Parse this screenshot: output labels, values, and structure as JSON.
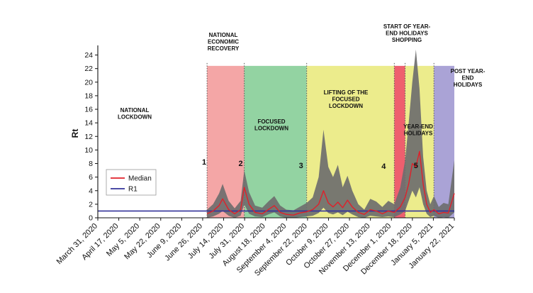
{
  "chart_data": {
    "type": "area",
    "title": "",
    "ylabel": "Rt",
    "xlabel": "",
    "ylim": [
      0,
      25
    ],
    "yticks": [
      0,
      2,
      4,
      6,
      8,
      10,
      12,
      14,
      16,
      18,
      20,
      22,
      24
    ],
    "x_tick_labels": [
      "March 31, 2020",
      "April 17, 2020",
      "May 5, 2020",
      "May 22, 2020",
      "June 9, 2020",
      "June 26, 2020",
      "July 14, 2020",
      "July 31, 2020",
      "August 18, 2020",
      "September 4, 2020",
      "September 22, 2020",
      "October 9, 2020",
      "October 27, 2020",
      "November 13, 2020",
      "December 1, 2020",
      "December 18, 2020",
      "January 5, 2021",
      "January 22, 2021"
    ],
    "x_range": [
      "2020-03-31",
      "2021-01-22"
    ],
    "phases": [
      {
        "label": "NATIONAL LOCKDOWN",
        "start": "2020-03-31",
        "end": "2020-06-30",
        "color": "#ffffff"
      },
      {
        "label": "NATIONAL ECONOMIC RECOVERY",
        "start": "2020-06-30",
        "end": "2020-07-31",
        "color": "#f4a6a6"
      },
      {
        "label": "FOCUSED LOCKDOWN",
        "start": "2020-07-31",
        "end": "2020-09-21",
        "color": "#93d3a2"
      },
      {
        "label": "LIFTING OF THE FOCUSED LOCKDOWN",
        "start": "2020-09-21",
        "end": "2020-12-03",
        "color": "#ecec8c"
      },
      {
        "label": "START OF YEAR-END HOLIDAYS SHOPPING",
        "start": "2020-12-03",
        "end": "2020-12-12",
        "color": "#ee5f6e"
      },
      {
        "label": "YEAR-END HOLIDAYS",
        "start": "2020-12-12",
        "end": "2021-01-05",
        "color": "#ecec8c"
      },
      {
        "label": "POST YEAR-END HOLIDAYS",
        "start": "2021-01-05",
        "end": "2021-01-22",
        "color": "#aaa3d6"
      }
    ],
    "phase_top": 22.4,
    "event_markers": [
      {
        "label": "1",
        "date": "2020-06-30"
      },
      {
        "label": "2",
        "date": "2020-07-31"
      },
      {
        "label": "3",
        "date": "2020-09-21"
      },
      {
        "label": "4",
        "date": "2020-12-03"
      },
      {
        "label": "5",
        "date": "2020-12-21"
      }
    ],
    "series": [
      {
        "name": "Median",
        "color": "#e0202a",
        "x": [
          "2020-06-30",
          "2020-07-05",
          "2020-07-10",
          "2020-07-13",
          "2020-07-18",
          "2020-07-23",
          "2020-07-28",
          "2020-07-31",
          "2020-08-04",
          "2020-08-09",
          "2020-08-15",
          "2020-08-20",
          "2020-08-25",
          "2020-08-30",
          "2020-09-04",
          "2020-09-10",
          "2020-09-15",
          "2020-09-21",
          "2020-09-26",
          "2020-10-01",
          "2020-10-05",
          "2020-10-09",
          "2020-10-13",
          "2020-10-17",
          "2020-10-21",
          "2020-10-25",
          "2020-10-29",
          "2020-11-03",
          "2020-11-08",
          "2020-11-13",
          "2020-11-18",
          "2020-11-23",
          "2020-11-28",
          "2020-12-03",
          "2020-12-08",
          "2020-12-12",
          "2020-12-15",
          "2020-12-18",
          "2020-12-21",
          "2020-12-24",
          "2020-12-27",
          "2020-12-30",
          "2021-01-02",
          "2021-01-05",
          "2021-01-09",
          "2021-01-13",
          "2021-01-17",
          "2021-01-22"
        ],
        "values": [
          0.6,
          1.0,
          1.8,
          2.8,
          1.2,
          0.6,
          1.2,
          4.5,
          2.0,
          0.8,
          0.6,
          1.2,
          1.8,
          0.8,
          0.5,
          0.4,
          0.7,
          0.9,
          1.2,
          2.0,
          4.0,
          2.2,
          1.6,
          2.3,
          1.5,
          2.6,
          1.6,
          0.8,
          0.5,
          1.2,
          1.0,
          0.6,
          1.0,
          0.8,
          1.6,
          3.0,
          5.0,
          8.0,
          7.5,
          9.8,
          5.0,
          2.0,
          0.8,
          1.2,
          0.6,
          0.8,
          0.7,
          3.6
        ]
      },
      {
        "name": "R1",
        "color": "#33339a",
        "x": [
          "2020-03-31",
          "2021-01-22"
        ],
        "values": [
          1,
          1
        ]
      }
    ],
    "credible_interval": {
      "color": "#6e6e6e",
      "x": [
        "2020-06-30",
        "2020-07-05",
        "2020-07-10",
        "2020-07-13",
        "2020-07-18",
        "2020-07-23",
        "2020-07-28",
        "2020-07-31",
        "2020-08-04",
        "2020-08-09",
        "2020-08-15",
        "2020-08-20",
        "2020-08-25",
        "2020-08-30",
        "2020-09-04",
        "2020-09-10",
        "2020-09-15",
        "2020-09-21",
        "2020-09-26",
        "2020-10-01",
        "2020-10-05",
        "2020-10-09",
        "2020-10-13",
        "2020-10-17",
        "2020-10-21",
        "2020-10-25",
        "2020-10-29",
        "2020-11-03",
        "2020-11-08",
        "2020-11-13",
        "2020-11-18",
        "2020-11-23",
        "2020-11-28",
        "2020-12-03",
        "2020-12-08",
        "2020-12-12",
        "2020-12-15",
        "2020-12-18",
        "2020-12-21",
        "2020-12-24",
        "2020-12-27",
        "2020-12-30",
        "2021-01-02",
        "2021-01-05",
        "2021-01-09",
        "2021-01-13",
        "2021-01-17",
        "2021-01-22"
      ],
      "lower": [
        0.0,
        0.2,
        0.6,
        1.0,
        0.3,
        0.0,
        0.3,
        2.0,
        0.6,
        0.2,
        0.1,
        0.5,
        0.8,
        0.2,
        0.0,
        0.0,
        0.1,
        0.2,
        0.3,
        0.7,
        1.5,
        0.7,
        0.5,
        0.8,
        0.4,
        0.9,
        0.5,
        0.1,
        0.0,
        0.3,
        0.2,
        0.1,
        0.2,
        0.1,
        0.5,
        1.0,
        2.5,
        4.0,
        3.0,
        4.5,
        2.0,
        0.6,
        0.1,
        0.3,
        0.0,
        0.1,
        0.0,
        0.8
      ],
      "upper": [
        1.2,
        2.0,
        3.6,
        5.0,
        2.5,
        1.4,
        2.5,
        7.0,
        3.8,
        1.8,
        1.5,
        2.4,
        3.2,
        1.8,
        1.2,
        1.1,
        1.6,
        2.2,
        3.0,
        6.0,
        13.0,
        7.5,
        6.0,
        7.8,
        4.5,
        6.2,
        4.0,
        2.0,
        1.2,
        2.8,
        2.4,
        1.6,
        2.5,
        2.0,
        4.5,
        8.5,
        14.0,
        20.0,
        24.8,
        19.0,
        9.0,
        4.0,
        2.0,
        3.2,
        1.6,
        2.2,
        2.0,
        8.5
      ]
    },
    "legend": {
      "position": "left-middle",
      "entries": [
        "Median",
        "R1"
      ]
    },
    "grid": false
  }
}
